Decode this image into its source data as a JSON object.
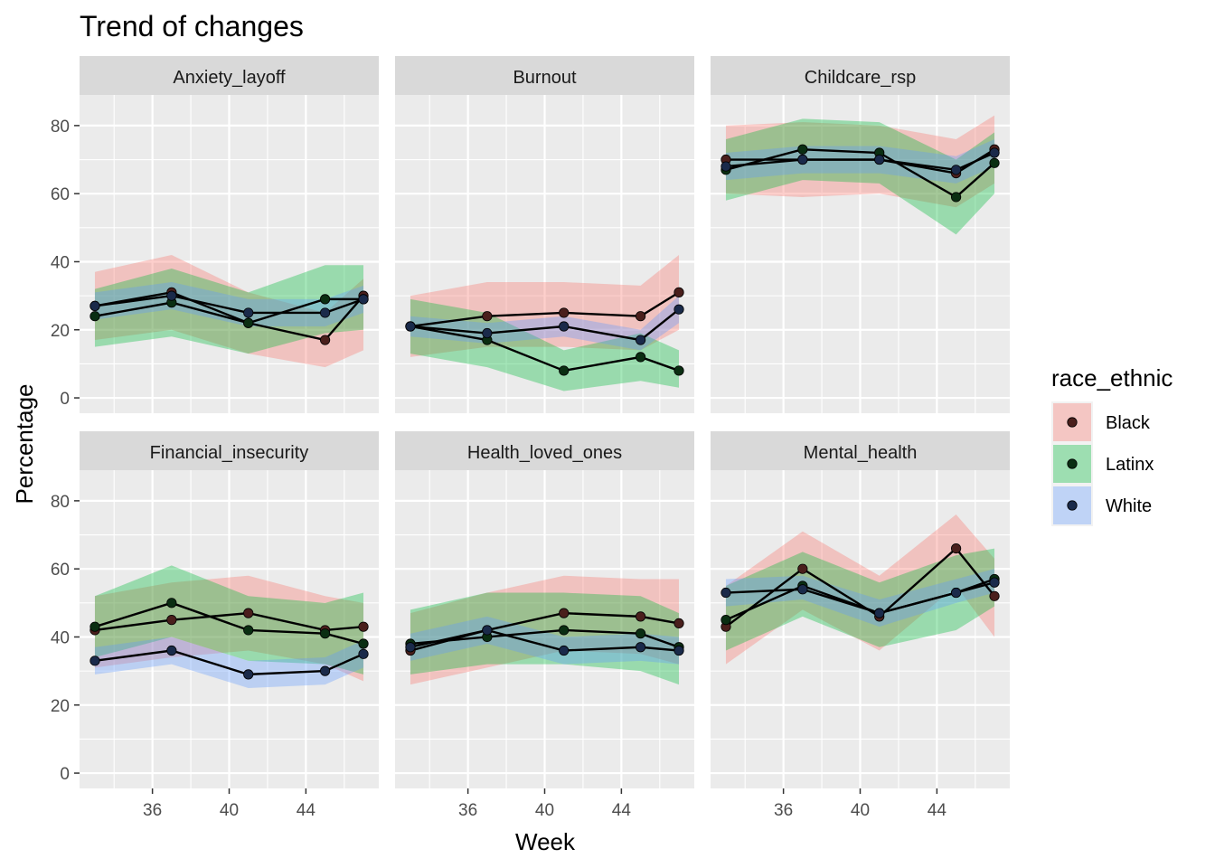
{
  "chart_data": {
    "type": "line",
    "title": "Trend of changes",
    "xlabel": "Week",
    "ylabel": "Percentage",
    "xlim": [
      32.2,
      47.8
    ],
    "ylim": [
      -4.5,
      89
    ],
    "x_ticks": [
      36,
      40,
      44
    ],
    "y_ticks": [
      0,
      20,
      40,
      60,
      80
    ],
    "grid": true,
    "legend": {
      "title": "race_ethnic",
      "placement": "right",
      "items": [
        {
          "name": "Black",
          "fill": "#F8766D",
          "point": "#4A1F1C"
        },
        {
          "name": "Latinx",
          "fill": "#00BA38",
          "point": "#0A2E12"
        },
        {
          "name": "White",
          "fill": "#619CFF",
          "point": "#1A2A4A"
        }
      ]
    },
    "x": [
      33,
      37,
      41,
      45,
      47
    ],
    "facets": [
      {
        "name": "Anxiety_layoff",
        "series": [
          {
            "name": "Black",
            "values": [
              27,
              31,
              22,
              17,
              30
            ],
            "lower": [
              17,
              20,
              13,
              9,
              14
            ],
            "upper": [
              37,
              42,
              31,
              25,
              35
            ]
          },
          {
            "name": "Latinx",
            "values": [
              24,
              28,
              22,
              29,
              29
            ],
            "lower": [
              15,
              18,
              13,
              19,
              20
            ],
            "upper": [
              32,
              38,
              31,
              39,
              39
            ]
          },
          {
            "name": "White",
            "values": [
              27,
              30,
              25,
              25,
              29
            ],
            "lower": [
              23,
              26,
              21,
              21,
              25
            ],
            "upper": [
              31,
              34,
              29,
              29,
              33
            ]
          }
        ]
      },
      {
        "name": "Burnout",
        "series": [
          {
            "name": "Black",
            "values": [
              21,
              24,
              25,
              24,
              31
            ],
            "lower": [
              12,
              15,
              15,
              14,
              20
            ],
            "upper": [
              30,
              34,
              34,
              33,
              42
            ]
          },
          {
            "name": "Latinx",
            "values": [
              21,
              17,
              8,
              12,
              8
            ],
            "lower": [
              13,
              9,
              2,
              5,
              3
            ],
            "upper": [
              29,
              25,
              14,
              19,
              14
            ]
          },
          {
            "name": "White",
            "values": [
              21,
              19,
              21,
              17,
              26
            ],
            "lower": [
              18,
              16,
              18,
              14,
              22
            ],
            "upper": [
              24,
              22,
              24,
              20,
              30
            ]
          }
        ]
      },
      {
        "name": "Childcare_rsp",
        "series": [
          {
            "name": "Black",
            "values": [
              70,
              70,
              70,
              66,
              73
            ],
            "lower": [
              60,
              59,
              60,
              56,
              63
            ],
            "upper": [
              80,
              81,
              80,
              76,
              83
            ]
          },
          {
            "name": "Latinx",
            "values": [
              67,
              73,
              72,
              59,
              69
            ],
            "lower": [
              58,
              64,
              63,
              48,
              60
            ],
            "upper": [
              76,
              82,
              81,
              70,
              78
            ]
          },
          {
            "name": "White",
            "values": [
              68,
              70,
              70,
              67,
              72
            ],
            "lower": [
              64,
              66,
              66,
              63,
              68
            ],
            "upper": [
              72,
              74,
              74,
              71,
              76
            ]
          }
        ]
      },
      {
        "name": "Financial_insecurity",
        "series": [
          {
            "name": "Black",
            "values": [
              42,
              45,
              47,
              42,
              43
            ],
            "lower": [
              31,
              34,
              36,
              32,
              27
            ],
            "upper": [
              52,
              56,
              58,
              52,
              50
            ]
          },
          {
            "name": "Latinx",
            "values": [
              43,
              50,
              42,
              41,
              38
            ],
            "lower": [
              34,
              40,
              33,
              32,
              29
            ],
            "upper": [
              52,
              61,
              52,
              50,
              53
            ]
          },
          {
            "name": "White",
            "values": [
              33,
              36,
              29,
              30,
              35
            ],
            "lower": [
              29,
              32,
              25,
              26,
              31
            ],
            "upper": [
              37,
              40,
              33,
              34,
              39
            ]
          }
        ]
      },
      {
        "name": "Health_loved_ones",
        "series": [
          {
            "name": "Black",
            "values": [
              36,
              42,
              47,
              46,
              44
            ],
            "lower": [
              26,
              31,
              36,
              35,
              32
            ],
            "upper": [
              47,
              53,
              58,
              57,
              57
            ]
          },
          {
            "name": "Latinx",
            "values": [
              38,
              40,
              42,
              41,
              37
            ],
            "lower": [
              29,
              32,
              32,
              30,
              26
            ],
            "upper": [
              48,
              53,
              53,
              52,
              47
            ]
          },
          {
            "name": "White",
            "values": [
              37,
              42,
              36,
              37,
              36
            ],
            "lower": [
              33,
              38,
              32,
              33,
              32
            ],
            "upper": [
              41,
              46,
              40,
              41,
              40
            ]
          }
        ]
      },
      {
        "name": "Mental_health",
        "series": [
          {
            "name": "Black",
            "values": [
              43,
              60,
              46,
              66,
              52
            ],
            "lower": [
              32,
              48,
              36,
              55,
              40
            ],
            "upper": [
              55,
              71,
              58,
              76,
              63
            ]
          },
          {
            "name": "Latinx",
            "values": [
              45,
              55,
              47,
              53,
              57
            ],
            "lower": [
              36,
              46,
              37,
              42,
              49
            ],
            "upper": [
              55,
              65,
              56,
              64,
              66
            ]
          },
          {
            "name": "White",
            "values": [
              53,
              54,
              47,
              53,
              56
            ],
            "lower": [
              49,
              51,
              43,
              50,
              53
            ],
            "upper": [
              57,
              58,
              51,
              57,
              60
            ]
          }
        ]
      }
    ]
  }
}
